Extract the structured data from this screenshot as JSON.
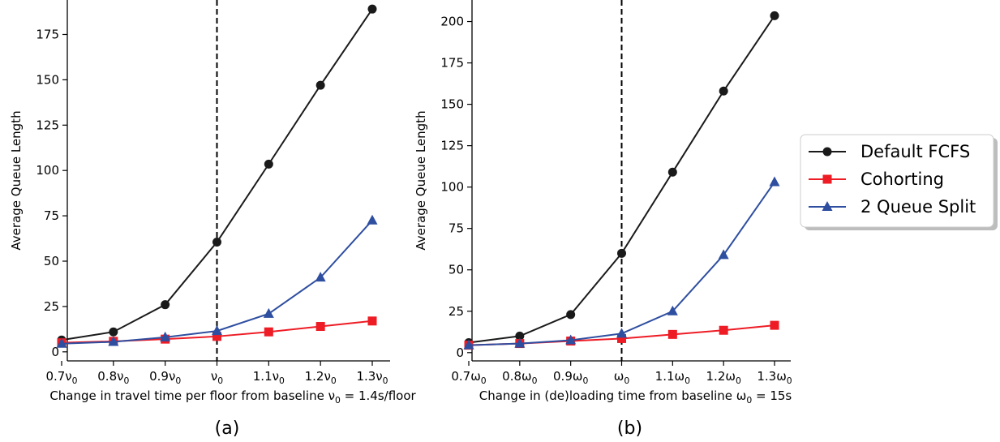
{
  "chart_data": [
    {
      "type": "line",
      "panel_label": "(a)",
      "categories": [
        "0.7ν₀",
        "0.8ν₀",
        "0.9ν₀",
        "ν₀",
        "1.1ν₀",
        "1.2ν₀",
        "1.3ν₀"
      ],
      "x": [
        0.7,
        0.8,
        0.9,
        1.0,
        1.1,
        1.2,
        1.3
      ],
      "series": [
        {
          "name": "Default FCFS",
          "values": [
            6.5,
            11,
            26,
            60.5,
            103.5,
            147,
            189
          ]
        },
        {
          "name": "Cohorting",
          "values": [
            5,
            5.8,
            7,
            8.5,
            11,
            14,
            17
          ]
        },
        {
          "name": "2 Queue Split",
          "values": [
            4.5,
            5.5,
            8,
            11.5,
            21,
            41,
            72.5
          ]
        }
      ],
      "xlabel": "Change in travel time per floor from baseline ν₀ = 1.4s/floor",
      "ylabel": "Average Queue Length",
      "yticks": [
        0,
        25,
        50,
        75,
        100,
        125,
        150,
        175
      ],
      "ylim": [
        -5,
        194
      ],
      "baseline_x": 1.0
    },
    {
      "type": "line",
      "panel_label": "(b)",
      "categories": [
        "0.7ω₀",
        "0.8ω₀",
        "0.9ω₀",
        "ω₀",
        "1.1ω₀",
        "1.2ω₀",
        "1.3ω₀"
      ],
      "x": [
        0.7,
        0.8,
        0.9,
        1.0,
        1.1,
        1.2,
        1.3
      ],
      "series": [
        {
          "name": "Default FCFS",
          "values": [
            6,
            10,
            23,
            60,
            109,
            158,
            203.5
          ]
        },
        {
          "name": "Cohorting",
          "values": [
            4.5,
            5.5,
            7,
            8.5,
            11,
            13.5,
            16.5
          ]
        },
        {
          "name": "2 Queue Split",
          "values": [
            4.5,
            5.5,
            7.5,
            11.5,
            25,
            59,
            103
          ]
        }
      ],
      "xlabel": "Change in (de)loading time from baseline ω₀ = 15s",
      "ylabel": "Average Queue Length",
      "yticks": [
        0,
        25,
        50,
        75,
        100,
        125,
        150,
        175,
        200
      ],
      "ylim": [
        -5,
        213
      ],
      "baseline_x": 1.0
    }
  ],
  "legend": {
    "entries": [
      "Default FCFS",
      "Cohorting",
      "2 Queue Split"
    ],
    "placement": "right"
  },
  "colors": {
    "Default FCFS": "#1a1a1a",
    "Cohorting": "#ee1c25",
    "2 Queue Split": "#2e4ea0"
  },
  "markers": {
    "Default FCFS": "circle",
    "Cohorting": "square",
    "2 Queue Split": "triangle"
  }
}
